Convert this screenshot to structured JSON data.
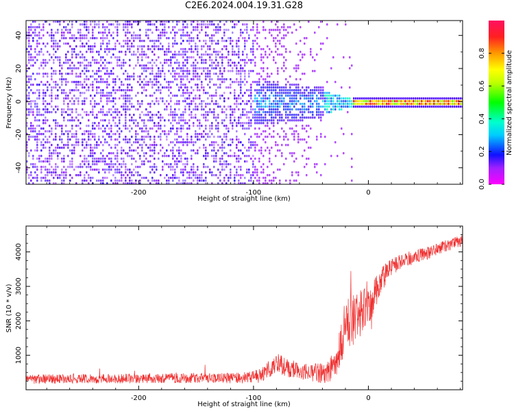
{
  "title": "C2E6.2024.004.19.31.G28",
  "colors": {
    "snr_line": "#ef2f2f",
    "spectrogram_noise": "#7a10e8",
    "frame": "#000000"
  },
  "chart_data": [
    {
      "type": "heatmap",
      "title": "C2E6.2024.004.19.31.G28",
      "xlabel": "Height of straight line (km)",
      "ylabel": "Frequency (Hz)",
      "xlim": [
        -298,
        82
      ],
      "ylim": [
        -50,
        49
      ],
      "x_ticks": [
        -200,
        -100,
        0
      ],
      "y_ticks": [
        -40,
        -20,
        0,
        20,
        40
      ],
      "colorbar": {
        "label": "Normalized spectral amplitude",
        "range": [
          0,
          1
        ],
        "ticks": [
          0.0,
          0.2,
          0.4,
          0.6,
          0.8
        ],
        "colormap": "hsv-reversed (magenta→blue→cyan→green→yellow→red)"
      },
      "features": [
        {
          "x_range": [
            -298,
            -100
          ],
          "freq_range": [
            -50,
            49
          ],
          "amplitude": [
            0.05,
            0.15
          ],
          "description": "broadband noise"
        },
        {
          "x_range": [
            -100,
            -20
          ],
          "freq_range": [
            -12,
            12
          ],
          "amplitude": [
            0.15,
            0.45
          ],
          "description": "signal emerging around 0 Hz"
        },
        {
          "x_range": [
            -20,
            82
          ],
          "freq_range": [
            -2,
            2
          ],
          "amplitude": [
            0.6,
            1.0
          ],
          "description": "strong carrier line at 0 Hz"
        }
      ],
      "grid": false
    },
    {
      "type": "line",
      "xlabel": "Height of straight line (km)",
      "ylabel": "SNR (10 * v/v)",
      "xlim": [
        -298,
        82
      ],
      "ylim": [
        0,
        4750
      ],
      "x_ticks": [
        -200,
        -100,
        0
      ],
      "y_ticks": [
        1000,
        2000,
        3000,
        4000
      ],
      "series": [
        {
          "x": [
            -298,
            -250,
            -200,
            -150,
            -110,
            -100,
            -90,
            -80,
            -70,
            -60,
            -50,
            -40,
            -30,
            -25,
            -20,
            -15,
            -10,
            -5,
            0,
            5,
            10,
            15,
            20,
            30,
            40,
            50,
            60,
            70,
            82
          ],
          "values": [
            300,
            320,
            330,
            340,
            340,
            380,
            480,
            780,
            620,
            550,
            500,
            480,
            650,
            1200,
            1900,
            2000,
            2100,
            2300,
            2450,
            2700,
            3100,
            3400,
            3550,
            3750,
            3850,
            3950,
            4100,
            4200,
            4350
          ],
          "noise_amplitude": [
            140,
            140,
            140,
            140,
            160,
            200,
            260,
            300,
            280,
            260,
            260,
            300,
            400,
            600,
            700,
            750,
            700,
            650,
            600,
            550,
            450,
            350,
            280,
            230,
            200,
            200,
            180,
            180,
            180
          ]
        }
      ],
      "grid": false
    }
  ]
}
